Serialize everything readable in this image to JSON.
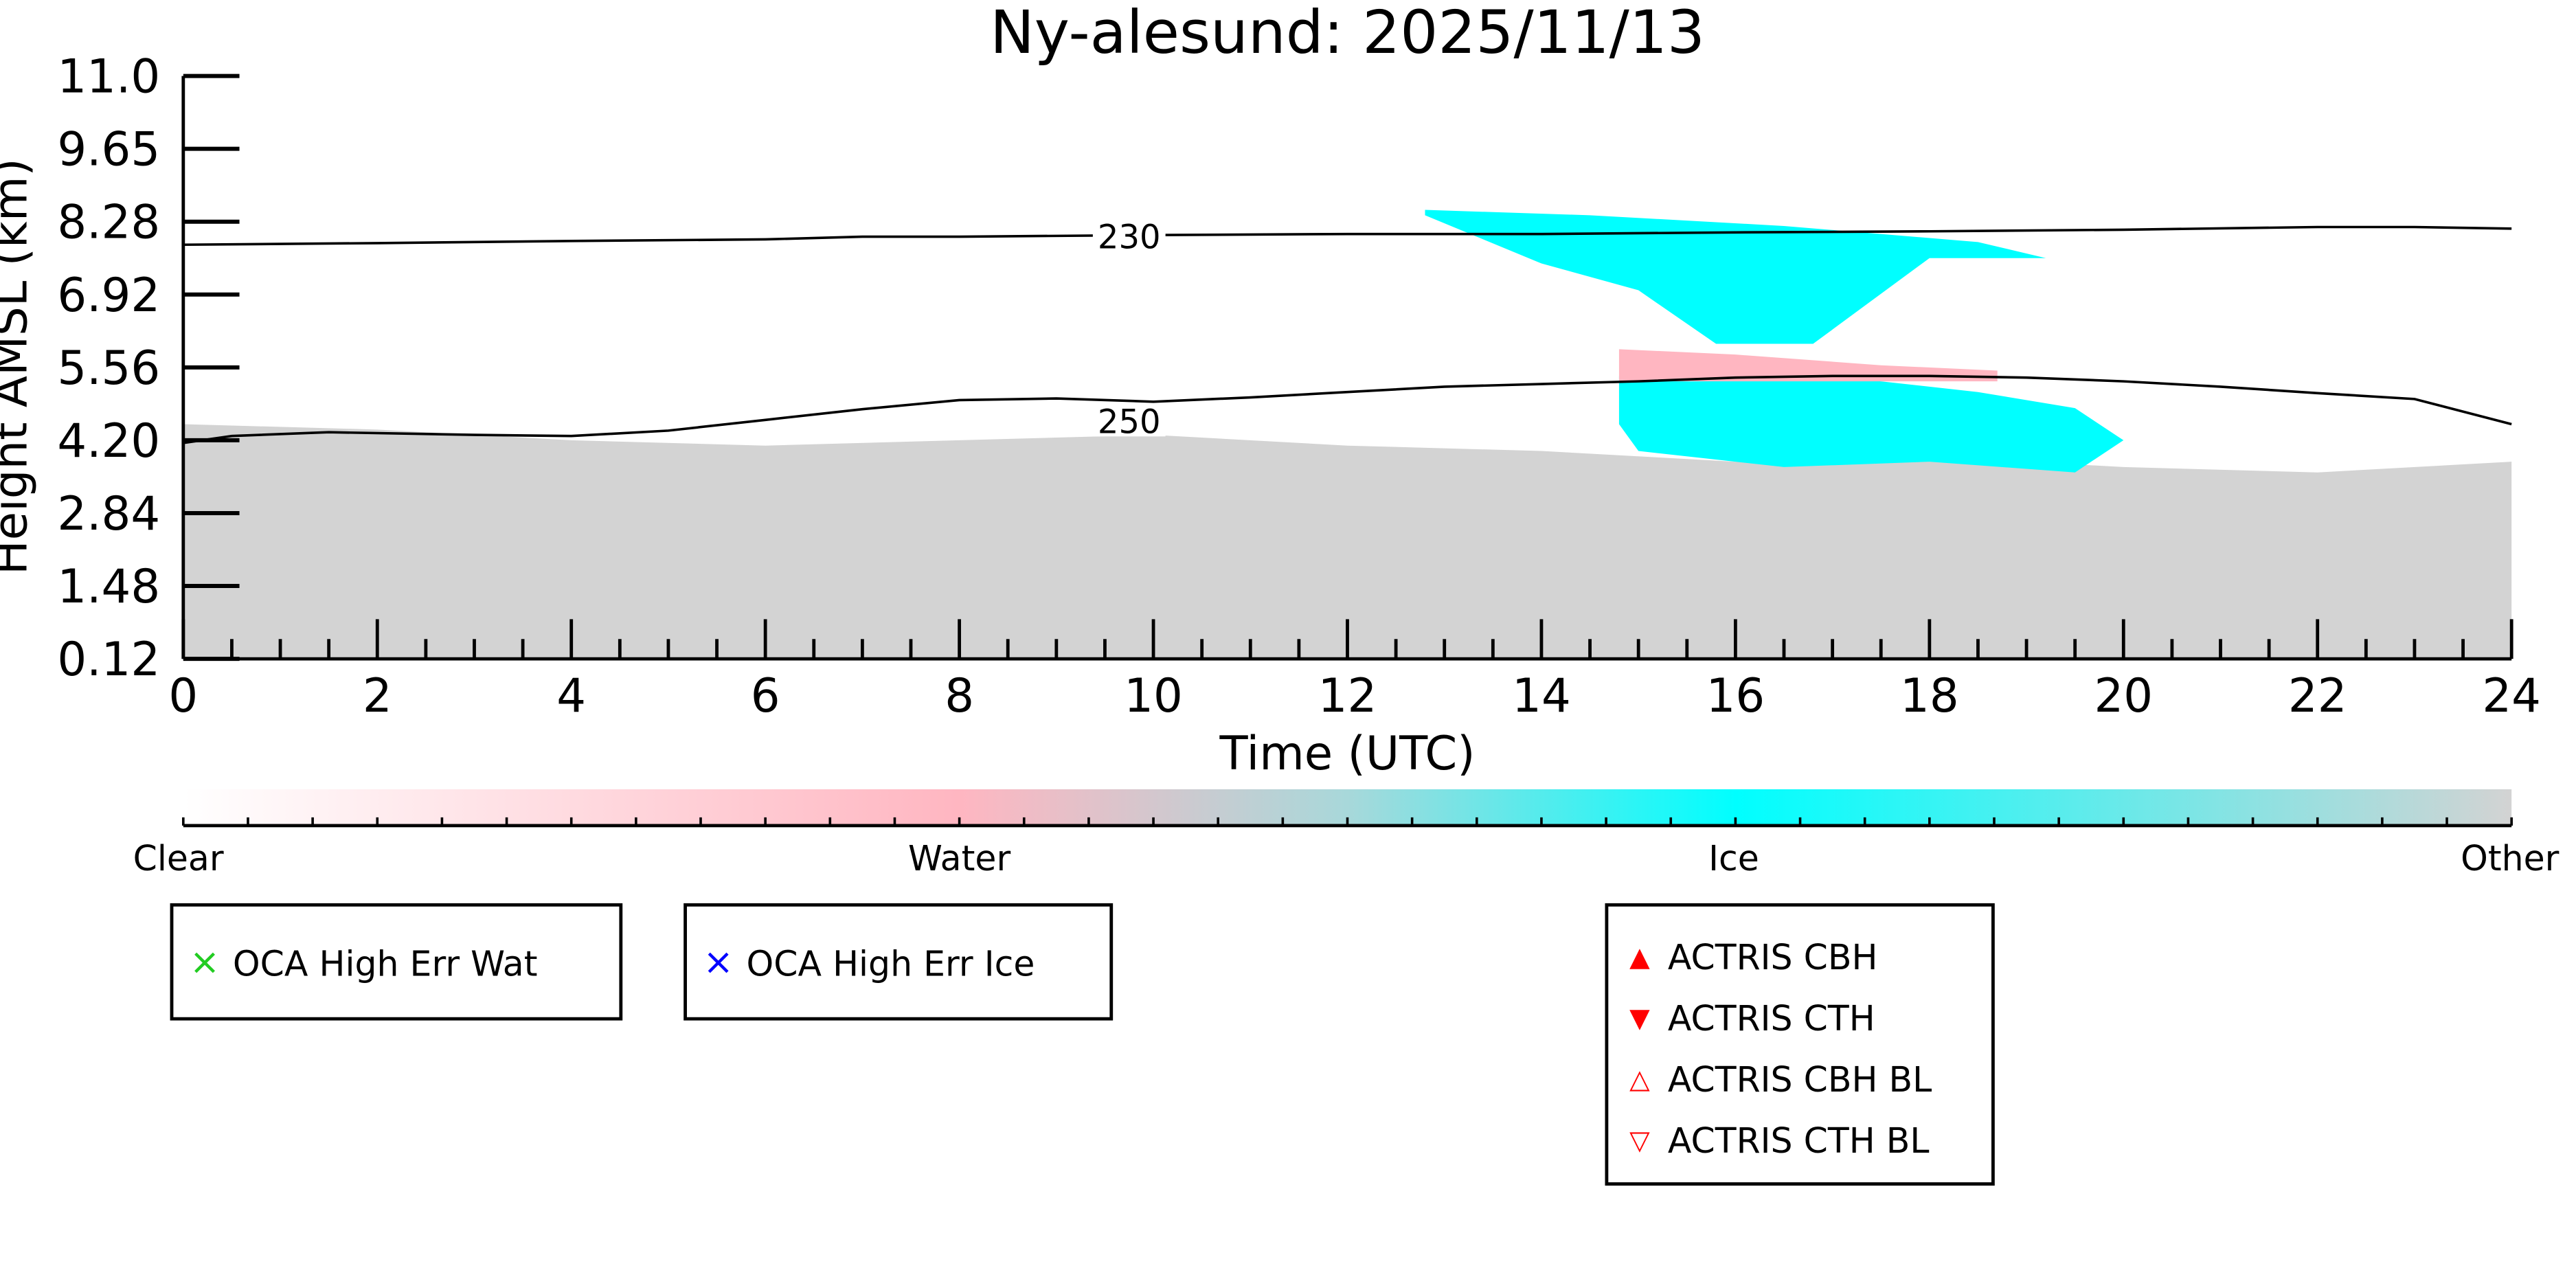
{
  "chart_data": {
    "type": "heatmap",
    "title": "Ny-alesund: 2025/11/13",
    "xlabel": "Time (UTC)",
    "ylabel": "Height AMSL (km)",
    "xlim": [
      0,
      24
    ],
    "ylim": [
      0.12,
      11.0
    ],
    "xticks": [
      "0",
      "2",
      "4",
      "6",
      "8",
      "10",
      "12",
      "14",
      "16",
      "18",
      "20",
      "22",
      "24"
    ],
    "yticks": [
      "0.12",
      "1.48",
      "2.84",
      "4.20",
      "5.56",
      "6.92",
      "8.28",
      "9.65",
      "11.0"
    ],
    "contours": [
      {
        "label": "230",
        "x": [
          0,
          2,
          4,
          6,
          7,
          8,
          10,
          12,
          14,
          16,
          18,
          20,
          22,
          23,
          24
        ],
        "y": [
          7.85,
          7.88,
          7.92,
          7.95,
          8.0,
          8.0,
          8.03,
          8.05,
          8.05,
          8.08,
          8.1,
          8.13,
          8.18,
          8.18,
          8.15
        ]
      },
      {
        "label": "250",
        "x": [
          0,
          0.5,
          1.5,
          3,
          4,
          5,
          6,
          7,
          8,
          9,
          10,
          11,
          12,
          13,
          14,
          15,
          16,
          17,
          18,
          19,
          20,
          21,
          22,
          23,
          24
        ],
        "y": [
          4.15,
          4.28,
          4.35,
          4.3,
          4.28,
          4.38,
          4.58,
          4.78,
          4.95,
          4.98,
          4.92,
          5.0,
          5.1,
          5.2,
          5.25,
          5.3,
          5.37,
          5.4,
          5.4,
          5.37,
          5.3,
          5.2,
          5.08,
          4.97,
          4.5
        ]
      }
    ],
    "colorbar": {
      "labels": [
        "Clear",
        "Water",
        "Ice",
        "Other"
      ],
      "colors": [
        "#ffffff",
        "#ffb6c1",
        "#00ffff",
        "#d3d3d3"
      ]
    },
    "regions": [
      {
        "class": "Other",
        "color": "#d3d3d3",
        "t": [
          0,
          2,
          4,
          6,
          8,
          10,
          12,
          14,
          16,
          18,
          20,
          22,
          24,
          24,
          0
        ],
        "h": [
          4.5,
          4.4,
          4.2,
          4.1,
          4.2,
          4.3,
          4.1,
          4.0,
          3.8,
          3.9,
          3.7,
          3.6,
          3.8,
          0.12,
          0.12
        ]
      },
      {
        "class": "Ice",
        "color": "#00ffff",
        "t": [
          14.8,
          15.5,
          17,
          18.5,
          19.5,
          20,
          19.5,
          18,
          16.5,
          15,
          14.8
        ],
        "h": [
          5.4,
          5.45,
          5.4,
          5.1,
          4.8,
          4.2,
          3.6,
          3.8,
          3.7,
          4.0,
          4.5
        ]
      },
      {
        "class": "Ice",
        "color": "#00ffff",
        "t": [
          12.8,
          14.5,
          16.5,
          18.5,
          19.2,
          18,
          16.8,
          15.8,
          15,
          14,
          12.8
        ],
        "h": [
          8.5,
          8.4,
          8.2,
          7.9,
          7.6,
          7.6,
          6.0,
          6.0,
          7.0,
          7.5,
          8.4
        ]
      },
      {
        "class": "Water",
        "color": "#ffb6c1",
        "t": [
          14.8,
          16,
          17.5,
          18.7,
          18.7,
          14.8
        ],
        "h": [
          5.9,
          5.8,
          5.6,
          5.5,
          5.3,
          5.3
        ]
      }
    ]
  },
  "legends": [
    {
      "items": [
        {
          "symbol": "×",
          "color": "#22cc22",
          "label": "OCA High Err Wat"
        }
      ]
    },
    {
      "items": [
        {
          "symbol": "×",
          "color": "#0000ff",
          "label": "OCA High Err Ice"
        }
      ]
    },
    {
      "items": [
        {
          "symbol": "▲",
          "color": "#ff0000",
          "label": "ACTRIS CBH"
        },
        {
          "symbol": "▼",
          "color": "#ff0000",
          "label": "ACTRIS CTH"
        },
        {
          "symbol": "△",
          "color": "#ff0000",
          "label": "ACTRIS CBH BL"
        },
        {
          "symbol": "▽",
          "color": "#ff0000",
          "label": "ACTRIS CTH BL"
        }
      ]
    }
  ]
}
